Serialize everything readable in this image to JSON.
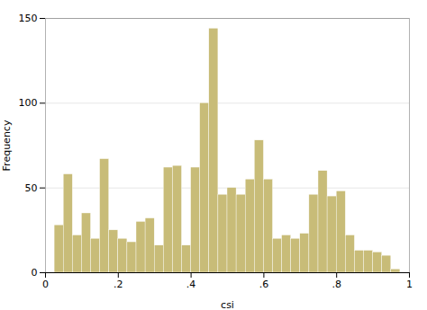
{
  "chart_data": {
    "type": "histogram",
    "xlabel": "csi",
    "ylabel": "Frequency",
    "bins": [
      0.025,
      0.05,
      0.075,
      0.1,
      0.125,
      0.15,
      0.175,
      0.2,
      0.225,
      0.25,
      0.275,
      0.3,
      0.325,
      0.35,
      0.375,
      0.4,
      0.425,
      0.45,
      0.475,
      0.5,
      0.525,
      0.55,
      0.575,
      0.6,
      0.625,
      0.65,
      0.675,
      0.7,
      0.725,
      0.75,
      0.775,
      0.8,
      0.825,
      0.85,
      0.875,
      0.9,
      0.925,
      0.95,
      0.975
    ],
    "values": [
      28,
      58,
      22,
      35,
      20,
      67,
      25,
      20,
      18,
      30,
      32,
      16,
      62,
      63,
      16,
      62,
      100,
      144,
      46,
      50,
      46,
      55,
      78,
      55,
      20,
      22,
      20,
      23,
      46,
      60,
      45,
      48,
      22,
      13,
      13,
      12,
      10,
      2
    ],
    "color": "#c8bc78",
    "xlim": [
      0,
      1
    ],
    "ylim": [
      0,
      150
    ],
    "xticks": [
      0,
      {
        "value": 0.2,
        "label": ".2"
      },
      {
        "value": 0.4,
        "label": ".4"
      },
      {
        "value": 0.6,
        "label": ".6"
      },
      {
        "value": 0.8,
        "label": ".8"
      },
      1
    ],
    "yticks": [
      0,
      50,
      100,
      150
    ],
    "grid": true
  }
}
